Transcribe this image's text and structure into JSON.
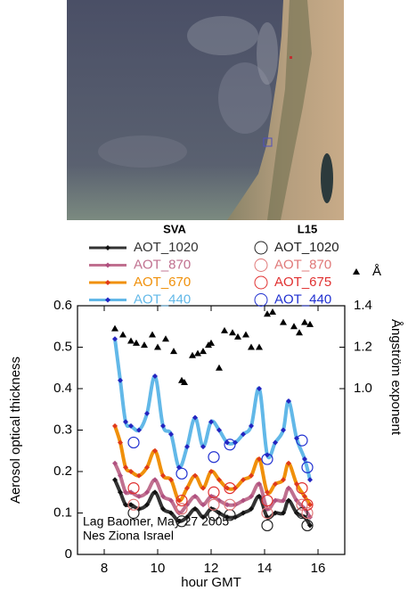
{
  "chart_data": {
    "type": "line",
    "xlabel": "hour GMT",
    "ylabel": "Aerosol optical thickness",
    "y2label": "Ångström exponent",
    "annotations": [
      "Lag Baomer, May 27 2005",
      "Nes Ziona Israel"
    ],
    "xlim": [
      7,
      17
    ],
    "xticks": [
      8,
      10,
      12,
      14,
      16
    ],
    "ylim": [
      0,
      0.6
    ],
    "yticks": [
      0,
      0.1,
      0.2,
      0.3,
      0.4,
      0.5,
      0.6
    ],
    "y2lim": [
      0.2,
      1.4
    ],
    "y2ticks": [
      {
        "value": 1,
        "label": "1.0"
      },
      1.2,
      1.4
    ],
    "groups": [
      {
        "title": "SVA",
        "marker": "diamond",
        "x": [
          8.4,
          8.6,
          8.8,
          9.0,
          9.3,
          9.6,
          9.9,
          10.2,
          10.5,
          10.8,
          11.1,
          11.4,
          11.7,
          12.0,
          12.3,
          12.6,
          12.9,
          13.2,
          13.5,
          13.8,
          14.1,
          14.4,
          14.7,
          14.9,
          15.2,
          15.5,
          15.7
        ],
        "series": [
          {
            "name": "AOT_1020",
            "color": "#333333",
            "marker_color": "#111111",
            "values": [
              0.18,
              0.15,
              0.12,
              0.12,
              0.11,
              0.12,
              0.15,
              0.11,
              0.1,
              0.08,
              0.09,
              0.11,
              0.09,
              0.11,
              0.1,
              0.09,
              0.09,
              0.1,
              0.11,
              0.14,
              0.09,
              0.1,
              0.1,
              0.13,
              0.1,
              0.09,
              0.07
            ]
          },
          {
            "name": "AOT_870",
            "color": "#c0708f",
            "marker_color": "#b05080",
            "values": [
              0.22,
              0.19,
              0.15,
              0.15,
              0.14,
              0.15,
              0.18,
              0.14,
              0.13,
              0.1,
              0.12,
              0.14,
              0.12,
              0.14,
              0.13,
              0.12,
              0.12,
              0.13,
              0.14,
              0.17,
              0.11,
              0.13,
              0.13,
              0.16,
              0.13,
              0.11,
              0.09
            ]
          },
          {
            "name": "AOT_670",
            "color": "#f0900a",
            "marker_color": "#e03a1a",
            "values": [
              0.31,
              0.27,
              0.21,
              0.2,
              0.19,
              0.21,
              0.25,
              0.19,
              0.18,
              0.13,
              0.16,
              0.19,
              0.16,
              0.2,
              0.18,
              0.16,
              0.16,
              0.18,
              0.19,
              0.23,
              0.15,
              0.17,
              0.18,
              0.22,
              0.17,
              0.14,
              0.12
            ]
          },
          {
            "name": "AOT_440",
            "color": "#62b8e8",
            "marker_color": "#2424c0",
            "values": [
              0.52,
              0.42,
              0.32,
              0.31,
              0.3,
              0.34,
              0.43,
              0.31,
              0.29,
              0.21,
              0.26,
              0.33,
              0.26,
              0.32,
              0.3,
              0.27,
              0.27,
              0.29,
              0.31,
              0.4,
              0.24,
              0.27,
              0.3,
              0.37,
              0.28,
              0.23,
              0.18
            ]
          }
        ]
      },
      {
        "title": "L15",
        "marker": "circle",
        "x": [
          9.1,
          10.9,
          12.1,
          12.7,
          14.1,
          15.4,
          15.6
        ],
        "series": [
          {
            "name": "AOT_1020",
            "color": "#222222",
            "values": [
              0.1,
              0.08,
              0.095,
              0.095,
              0.07,
              0.1,
              0.07
            ]
          },
          {
            "name": "AOT_870",
            "color": "#e07878",
            "values": [
              0.12,
              0.11,
              0.12,
              0.12,
              0.1,
              0.12,
              0.1
            ]
          },
          {
            "name": "AOT_675",
            "color": "#e03030",
            "values": [
              0.16,
              0.13,
              0.15,
              0.16,
              0.13,
              0.16,
              0.12
            ]
          },
          {
            "name": "AOT_440",
            "color": "#2030d0",
            "values": [
              0.27,
              0.195,
              0.235,
              0.265,
              0.23,
              0.275,
              0.21
            ]
          }
        ]
      }
    ],
    "angstrom": {
      "name": "Å",
      "color": "#000000",
      "axis": "y2",
      "x": [
        8.4,
        8.7,
        9.0,
        9.2,
        9.5,
        9.8,
        10.0,
        10.3,
        10.6,
        10.9,
        11.0,
        11.3,
        11.5,
        11.7,
        11.9,
        12.0,
        12.3,
        12.5,
        12.8,
        13.0,
        13.3,
        13.5,
        13.8,
        14.1,
        14.3,
        14.7,
        15.1,
        15.3,
        15.5,
        15.7
      ],
      "values": [
        1.29,
        1.26,
        1.23,
        1.22,
        1.21,
        1.26,
        1.2,
        1.24,
        1.18,
        1.04,
        1.03,
        1.16,
        1.17,
        1.18,
        1.21,
        1.22,
        1.1,
        1.28,
        1.27,
        1.25,
        1.26,
        1.2,
        1.2,
        1.36,
        1.37,
        1.32,
        1.3,
        1.27,
        1.32,
        1.31
      ]
    }
  }
}
